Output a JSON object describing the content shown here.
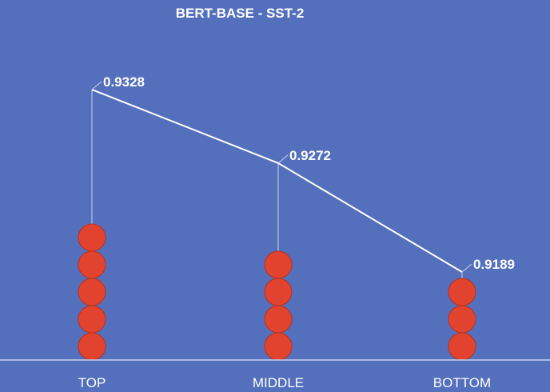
{
  "colors": {
    "background": "#5470BC",
    "text": "#FFFFFF",
    "line": "#FFFFFF",
    "drop_line": "#C9D2EC",
    "marker_fill": "#E1432F",
    "marker_stroke": "#B5321F"
  },
  "chart_data": {
    "type": "line",
    "title": "BERT-BASE - SST-2",
    "categories": [
      "TOP",
      "MIDDLE",
      "BOTTOM"
    ],
    "series": [
      {
        "values": [
          0.9328,
          0.9272,
          0.9189
        ],
        "value_labels": [
          "0.9328",
          "0.9272",
          "0.9189"
        ]
      }
    ],
    "marker_stacks": [
      5,
      4,
      3
    ],
    "xlabel": "",
    "ylabel": "",
    "ylim": [
      0.913,
      0.935
    ],
    "grid": false,
    "legend": "none"
  }
}
